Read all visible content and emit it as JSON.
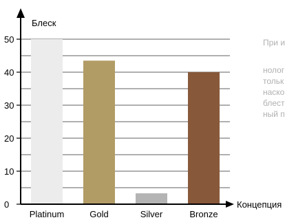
{
  "chart_data": {
    "type": "bar",
    "ylabel": "Блеск",
    "xlabel": "Концепция",
    "categories": [
      "Platinum",
      "Gold",
      "Silver",
      "Bronze"
    ],
    "values": [
      50,
      43.5,
      3.3,
      40
    ],
    "ylim": [
      0,
      50
    ],
    "yticks": [
      0,
      10,
      20,
      30,
      40,
      50
    ],
    "colors": [
      "#ececec",
      "#b29c66",
      "#b4b4b4",
      "#87593a"
    ],
    "grid": true
  },
  "side_text": {
    "heading": "При и",
    "lines": [
      "нолог",
      "тольк",
      "наско",
      "блест",
      "ный п"
    ]
  }
}
